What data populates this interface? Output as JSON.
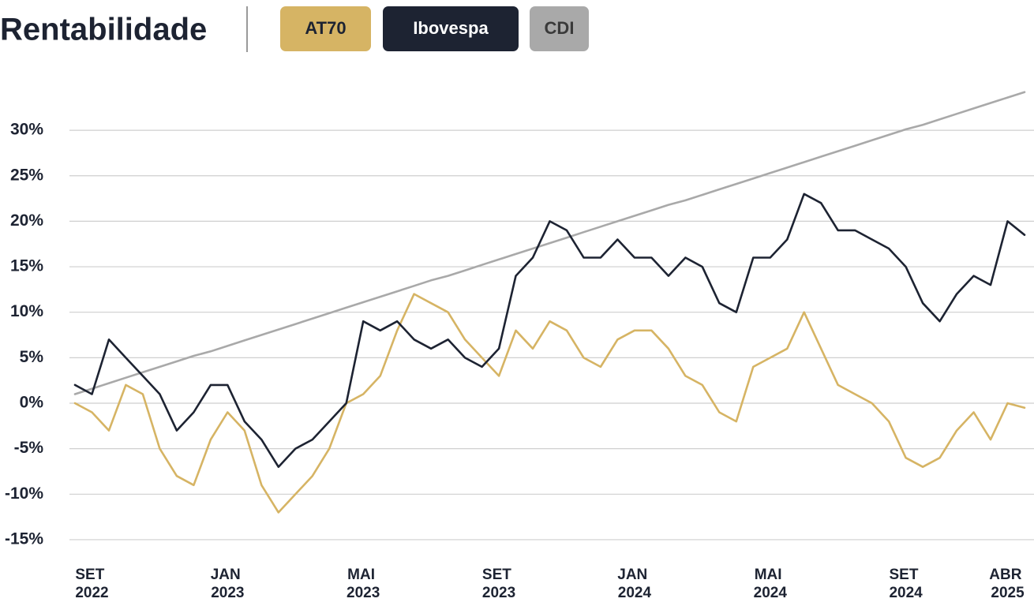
{
  "chart_data": {
    "type": "line",
    "title": "Rentabilidade",
    "categories": [
      null,
      "SET 2022",
      null,
      null,
      null,
      null,
      null,
      null,
      null,
      "JAN 2023",
      null,
      null,
      null,
      null,
      null,
      null,
      null,
      "MAI 2023",
      null,
      null,
      null,
      null,
      null,
      null,
      null,
      "SET 2023",
      null,
      null,
      null,
      null,
      null,
      null,
      null,
      "JAN 2024",
      null,
      null,
      null,
      null,
      null,
      null,
      null,
      "MAI 2024",
      null,
      null,
      null,
      null,
      null,
      null,
      null,
      "SET 2024",
      null,
      null,
      null,
      null,
      null,
      "ABR 2025",
      null
    ],
    "series": [
      {
        "name": "AT70",
        "color": "#d6b464",
        "values": [
          0,
          -1,
          -3,
          2,
          1,
          -5,
          -8,
          -9,
          -4,
          -1,
          -3,
          -9,
          -12,
          -10,
          -8,
          -5,
          0,
          1,
          3,
          8,
          12,
          11,
          10,
          7,
          5,
          3,
          8,
          6,
          9,
          8,
          5,
          4,
          7,
          8,
          8,
          6,
          3,
          2,
          -1,
          -2,
          4,
          5,
          6,
          10,
          6,
          2,
          1,
          0,
          -2,
          -6,
          -7,
          -6,
          -3,
          -1,
          -4,
          0,
          -0.5
        ]
      },
      {
        "name": "Ibovespa",
        "color": "#1d2332",
        "values": [
          2,
          1,
          7,
          5,
          3,
          1,
          -3,
          -1,
          2,
          2,
          -2,
          -4,
          -7,
          -5,
          -4,
          -2,
          0,
          9,
          8,
          9,
          7,
          6,
          7,
          5,
          4,
          6,
          14,
          16,
          20,
          19,
          16,
          16,
          18,
          16,
          16,
          14,
          16,
          15,
          11,
          10,
          16,
          16,
          18,
          23,
          22,
          19,
          19,
          18,
          17,
          15,
          11,
          9,
          12,
          14,
          13,
          20,
          18.5
        ]
      },
      {
        "name": "CDI",
        "color": "#a9a9a9",
        "values": [
          1.0,
          1.6,
          2.2,
          2.8,
          3.4,
          4.0,
          4.6,
          5.2,
          5.7,
          6.3,
          6.9,
          7.5,
          8.1,
          8.7,
          9.3,
          9.9,
          10.5,
          11.1,
          11.7,
          12.3,
          12.9,
          13.5,
          14.0,
          14.6,
          15.2,
          15.8,
          16.4,
          17.0,
          17.6,
          18.2,
          18.8,
          19.4,
          20.0,
          20.6,
          21.2,
          21.8,
          22.3,
          22.9,
          23.5,
          24.1,
          24.7,
          25.3,
          25.9,
          26.5,
          27.1,
          27.7,
          28.3,
          28.9,
          29.5,
          30.1,
          30.6,
          31.2,
          31.8,
          32.4,
          33.0,
          33.6,
          34.2
        ]
      }
    ],
    "ylim": [
      -16,
      35
    ],
    "yticks": [
      {
        "value": -15,
        "label": "-15%"
      },
      {
        "value": -10,
        "label": "-10%"
      },
      {
        "value": -5,
        "label": "-5%"
      },
      {
        "value": 0,
        "label": "0%"
      },
      {
        "value": 5,
        "label": "5%"
      },
      {
        "value": 10,
        "label": "10%"
      },
      {
        "value": 15,
        "label": "15%"
      },
      {
        "value": 20,
        "label": "20%"
      },
      {
        "value": 25,
        "label": "25%"
      },
      {
        "value": 30,
        "label": "30%"
      }
    ],
    "grid": true
  }
}
